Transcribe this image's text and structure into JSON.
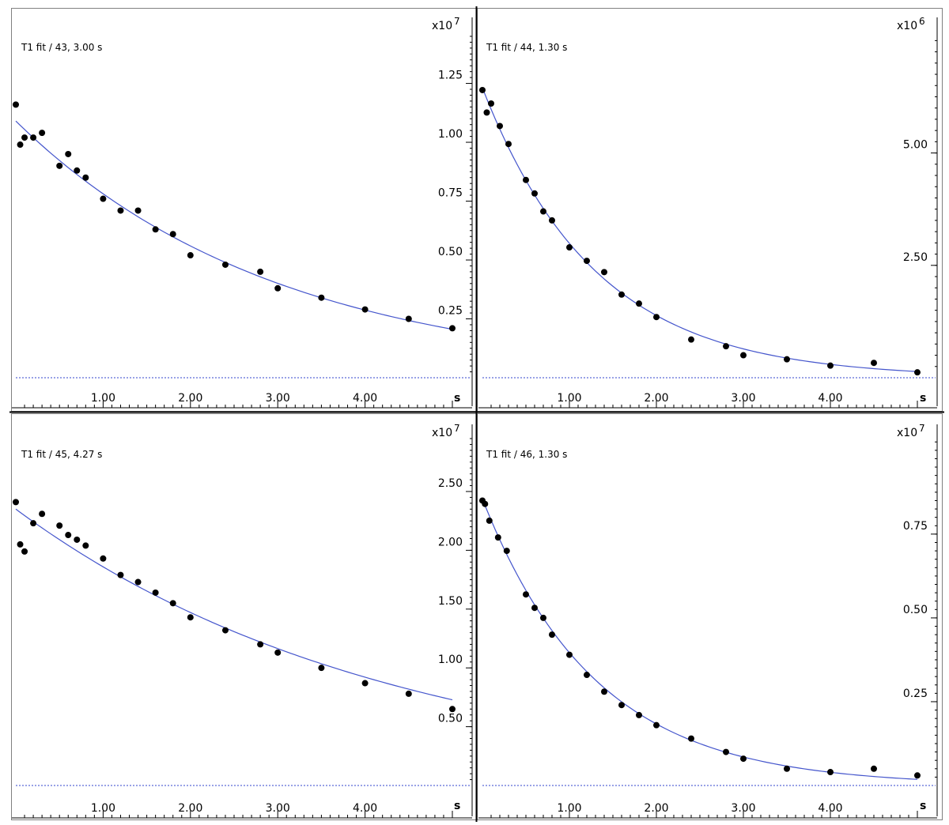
{
  "chart_data": [
    {
      "type": "scatter",
      "title": "T1 fit / 43,  3.00 s",
      "x_unit": "s",
      "multiplier": {
        "base": "x10",
        "exp": "7"
      },
      "xlim": [
        -0.05,
        5.05
      ],
      "ylim": [
        -0.05,
        1.47
      ],
      "x_ticks": [
        1.0,
        2.0,
        3.0,
        4.0
      ],
      "x_tick_labels": [
        "1.00",
        "2.00",
        "3.00",
        "4.00"
      ],
      "y_ticks": [
        0.25,
        0.5,
        0.75,
        1.0,
        1.25
      ],
      "y_tick_labels": [
        "0.25",
        "0.50",
        "0.75",
        "1.00",
        "1.25"
      ],
      "baseline": 0,
      "fit": {
        "A": 1.09,
        "T": 3.0
      },
      "points": [
        [
          0.0,
          1.16
        ],
        [
          0.05,
          0.99
        ],
        [
          0.1,
          1.02
        ],
        [
          0.2,
          1.02
        ],
        [
          0.3,
          1.04
        ],
        [
          0.5,
          0.9
        ],
        [
          0.6,
          0.95
        ],
        [
          0.7,
          0.88
        ],
        [
          0.8,
          0.85
        ],
        [
          1.0,
          0.76
        ],
        [
          1.2,
          0.71
        ],
        [
          1.4,
          0.71
        ],
        [
          1.6,
          0.63
        ],
        [
          1.8,
          0.61
        ],
        [
          2.0,
          0.52
        ],
        [
          2.4,
          0.48
        ],
        [
          2.8,
          0.45
        ],
        [
          3.0,
          0.38
        ],
        [
          3.5,
          0.34
        ],
        [
          4.0,
          0.29
        ],
        [
          4.5,
          0.25
        ],
        [
          5.0,
          0.21
        ]
      ]
    },
    {
      "type": "scatter",
      "title": "T1 fit / 44,  1.30 s",
      "x_unit": "s",
      "multiplier": {
        "base": "x10",
        "exp": "6"
      },
      "xlim": [
        -0.05,
        5.05
      ],
      "ylim": [
        -0.1,
        7.7
      ],
      "x_ticks": [
        1.0,
        2.0,
        3.0,
        4.0
      ],
      "x_tick_labels": [
        "1.00",
        "2.00",
        "3.00",
        "4.00"
      ],
      "y_ticks": [
        2.5,
        5.0
      ],
      "y_tick_labels": [
        "2.50",
        "5.00"
      ],
      "baseline": 0,
      "fit": {
        "A": 6.45,
        "T": 1.3
      },
      "points": [
        [
          0.0,
          6.4
        ],
        [
          0.05,
          5.9
        ],
        [
          0.1,
          6.1
        ],
        [
          0.2,
          5.6
        ],
        [
          0.3,
          5.2
        ],
        [
          0.5,
          4.4
        ],
        [
          0.6,
          4.1
        ],
        [
          0.7,
          3.7
        ],
        [
          0.8,
          3.5
        ],
        [
          1.0,
          2.9
        ],
        [
          1.2,
          2.6
        ],
        [
          1.4,
          2.35
        ],
        [
          1.6,
          1.85
        ],
        [
          1.8,
          1.65
        ],
        [
          2.0,
          1.35
        ],
        [
          2.4,
          0.85
        ],
        [
          2.8,
          0.7
        ],
        [
          3.0,
          0.5
        ],
        [
          3.5,
          0.41
        ],
        [
          4.0,
          0.27
        ],
        [
          4.5,
          0.33
        ],
        [
          5.0,
          0.12
        ]
      ]
    },
    {
      "type": "scatter",
      "title": "T1 fit / 45,  4.27 s",
      "x_unit": "s",
      "multiplier": {
        "base": "x10",
        "exp": "7"
      },
      "xlim": [
        -0.05,
        5.05
      ],
      "ylim": [
        0.0,
        2.95
      ],
      "x_ticks": [
        1.0,
        2.0,
        3.0,
        4.0
      ],
      "x_tick_labels": [
        "1.00",
        "2.00",
        "3.00",
        "4.00"
      ],
      "y_ticks": [
        0.5,
        1.0,
        1.5,
        2.0,
        2.5
      ],
      "y_tick_labels": [
        "0.50",
        "1.00",
        "1.50",
        "2.00",
        "2.50"
      ],
      "baseline": 0,
      "fit": {
        "A": 2.35,
        "T": 4.27
      },
      "points": [
        [
          0.0,
          2.41
        ],
        [
          0.05,
          2.05
        ],
        [
          0.1,
          1.99
        ],
        [
          0.2,
          2.23
        ],
        [
          0.3,
          2.31
        ],
        [
          0.5,
          2.21
        ],
        [
          0.6,
          2.13
        ],
        [
          0.7,
          2.09
        ],
        [
          0.8,
          2.04
        ],
        [
          1.0,
          1.93
        ],
        [
          1.2,
          1.79
        ],
        [
          1.4,
          1.73
        ],
        [
          1.6,
          1.64
        ],
        [
          1.8,
          1.55
        ],
        [
          2.0,
          1.43
        ],
        [
          2.4,
          1.32
        ],
        [
          2.8,
          1.2
        ],
        [
          3.0,
          1.13
        ],
        [
          3.5,
          1.0
        ],
        [
          4.0,
          0.87
        ],
        [
          4.5,
          0.78
        ],
        [
          5.0,
          0.65
        ]
      ]
    },
    {
      "type": "scatter",
      "title": "T1 fit / 46,  1.30 s",
      "x_unit": "s",
      "multiplier": {
        "base": "x10",
        "exp": "7"
      },
      "xlim": [
        -0.05,
        5.05
      ],
      "ylim": [
        -0.01,
        1.035
      ],
      "x_ticks": [
        1.0,
        2.0,
        3.0,
        4.0
      ],
      "x_tick_labels": [
        "1.00",
        "2.00",
        "3.00",
        "4.00"
      ],
      "y_ticks": [
        0.25,
        0.5,
        0.75
      ],
      "y_tick_labels": [
        "0.25",
        "0.50",
        "0.75"
      ],
      "baseline": 0,
      "fit": {
        "A": 0.855,
        "T": 1.3
      },
      "points": [
        [
          0.0,
          0.85
        ],
        [
          0.03,
          0.84
        ],
        [
          0.08,
          0.79
        ],
        [
          0.18,
          0.74
        ],
        [
          0.28,
          0.7
        ],
        [
          0.5,
          0.57
        ],
        [
          0.6,
          0.53
        ],
        [
          0.7,
          0.5
        ],
        [
          0.8,
          0.45
        ],
        [
          1.0,
          0.39
        ],
        [
          1.2,
          0.33
        ],
        [
          1.4,
          0.28
        ],
        [
          1.6,
          0.24
        ],
        [
          1.8,
          0.21
        ],
        [
          2.0,
          0.18
        ],
        [
          2.4,
          0.14
        ],
        [
          2.8,
          0.1
        ],
        [
          3.0,
          0.08
        ],
        [
          3.5,
          0.05
        ],
        [
          4.0,
          0.04
        ],
        [
          4.5,
          0.05
        ],
        [
          5.0,
          0.03
        ]
      ]
    }
  ]
}
